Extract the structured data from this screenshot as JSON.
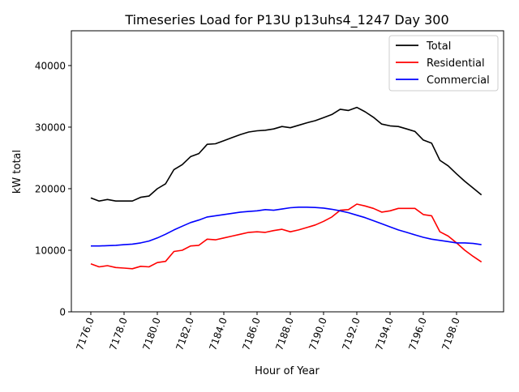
{
  "chart_data": {
    "type": "line",
    "title": "Timeseries Load for P13U p13uhs4_1247  Day 300",
    "xlabel": "Hour of Year",
    "ylabel": "kW total",
    "xlim": [
      7174.83,
      7200.83
    ],
    "ylim": [
      0,
      45650
    ],
    "xticks": [
      7176,
      7178,
      7180,
      7182,
      7184,
      7186,
      7188,
      7190,
      7192,
      7194,
      7196,
      7198
    ],
    "xtick_labels": [
      "7176.0",
      "7178.0",
      "7180.0",
      "7182.0",
      "7184.0",
      "7186.0",
      "7188.0",
      "7190.0",
      "7192.0",
      "7194.0",
      "7196.0",
      "7198.0"
    ],
    "yticks": [
      0,
      10000,
      20000,
      30000,
      40000
    ],
    "ytick_labels": [
      "0",
      "10000",
      "20000",
      "30000",
      "40000"
    ],
    "grid": false,
    "legend_position": "top-right",
    "x_start": 7176,
    "x_step": 0.5,
    "series": [
      {
        "name": "Total",
        "color": "#000000",
        "values": [
          18500,
          18000,
          18250,
          18000,
          18000,
          18000,
          18600,
          18800,
          20000,
          20800,
          23100,
          23900,
          25200,
          25700,
          27200,
          27300,
          27800,
          28300,
          28800,
          29200,
          29400,
          29500,
          29700,
          30100,
          29900,
          30300,
          30700,
          31050,
          31550,
          32050,
          32900,
          32700,
          33200,
          32500,
          31600,
          30500,
          30200,
          30100,
          29700,
          29300,
          27900,
          27400,
          24600,
          23700,
          22400,
          21200,
          20100,
          19000
        ]
      },
      {
        "name": "Residential",
        "color": "#ff0000",
        "values": [
          7800,
          7300,
          7500,
          7200,
          7100,
          7000,
          7400,
          7300,
          8000,
          8200,
          9800,
          10000,
          10700,
          10800,
          11800,
          11700,
          12000,
          12300,
          12600,
          12900,
          13000,
          12900,
          13200,
          13400,
          13000,
          13300,
          13700,
          14100,
          14700,
          15400,
          16500,
          16600,
          17500,
          17200,
          16800,
          16200,
          16400,
          16800,
          16800,
          16800,
          15800,
          15600,
          13000,
          12300,
          11200,
          10000,
          9000,
          8100
        ]
      },
      {
        "name": "Commercial",
        "color": "#0000ff",
        "values": [
          10700,
          10700,
          10750,
          10800,
          10900,
          11000,
          11200,
          11500,
          12000,
          12600,
          13300,
          13900,
          14500,
          14900,
          15400,
          15600,
          15800,
          16000,
          16200,
          16300,
          16400,
          16600,
          16500,
          16700,
          16900,
          17000,
          17000,
          16950,
          16850,
          16650,
          16400,
          16100,
          15700,
          15300,
          14800,
          14300,
          13800,
          13300,
          12900,
          12500,
          12100,
          11800,
          11600,
          11400,
          11200,
          11200,
          11100,
          10900
        ]
      }
    ]
  }
}
